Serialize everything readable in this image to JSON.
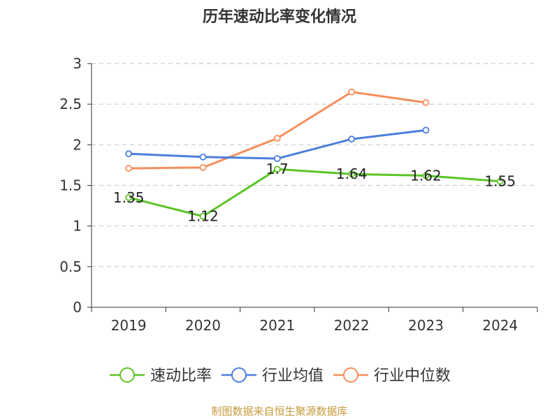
{
  "chart_data": {
    "type": "line",
    "title": "历年速动比率变化情况",
    "categories": [
      "2019",
      "2020",
      "2021",
      "2022",
      "2023",
      "2024"
    ],
    "y_ticks": [
      "0",
      "0.5",
      "1",
      "1.5",
      "2",
      "2.5",
      "3"
    ],
    "ylim": [
      0,
      3
    ],
    "grid": true,
    "legend_position": "bottom",
    "series": [
      {
        "name": "速动比率",
        "color": "#5bc425",
        "values": [
          1.35,
          1.12,
          1.7,
          1.64,
          1.62,
          1.55
        ],
        "labels": [
          "1.35",
          "1.12",
          "1.7",
          "1.64",
          "1.62",
          "1.55"
        ]
      },
      {
        "name": "行业均值",
        "color": "#4a7fdc",
        "values": [
          1.89,
          1.85,
          1.83,
          2.07,
          2.18,
          null
        ]
      },
      {
        "name": "行业中位数",
        "color": "#f78d5a",
        "values": [
          1.71,
          1.72,
          2.08,
          2.65,
          2.52,
          null
        ]
      }
    ]
  },
  "source_text": "制图数据来自恒生聚源数据库"
}
